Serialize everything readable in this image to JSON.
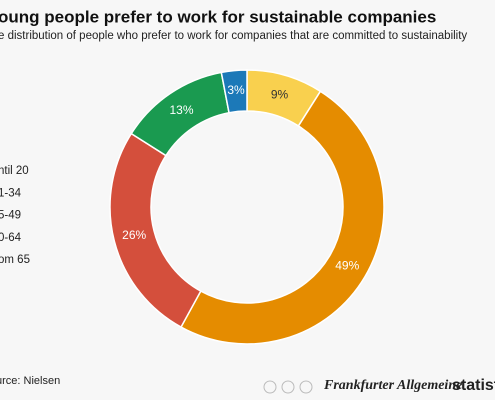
{
  "chart_data": {
    "type": "donut",
    "title": "oung people prefer to work for sustainable companies",
    "subtitle": "e distribution of people who prefer to work for companies that are committed to sustainability",
    "categories": [
      "ntil 20",
      "1-34",
      "5-49",
      "0-64",
      "om 65"
    ],
    "values": [
      9,
      49,
      26,
      13,
      3
    ],
    "value_labels": [
      "9%",
      "49%",
      "26%",
      "13%",
      "3%"
    ],
    "colors": [
      "#f9d04e",
      "#e58c00",
      "#d44f3c",
      "#1a9a50",
      "#1c79b8"
    ],
    "source": "urce: Nielsen",
    "credits": [
      "Frankfurter Allgemeine",
      "statist"
    ]
  }
}
